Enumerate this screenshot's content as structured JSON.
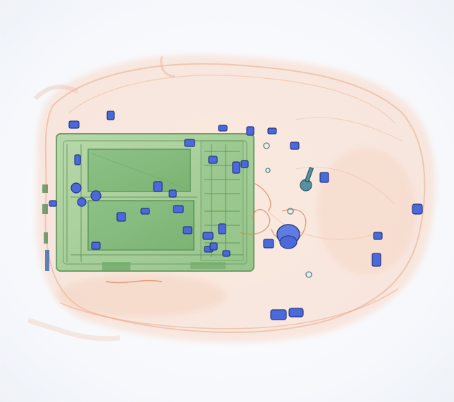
{
  "image": {
    "type": "x-ray baggage scan",
    "palette": {
      "background": "#fbfcfe",
      "organic": "#e8855a",
      "organic_light": "#f6c9ae",
      "inorganic": "#5e9e5a",
      "inorganic_light": "#9ccb8f",
      "metal": "#3f5fd8",
      "metal_dark": "#182a7a"
    },
    "regions": [
      {
        "name": "bag-outline",
        "material": "organic"
      },
      {
        "name": "laptop-board",
        "material": "inorganic"
      },
      {
        "name": "components",
        "material": "metal"
      },
      {
        "name": "key",
        "material": "metal"
      },
      {
        "name": "coins",
        "material": "metal"
      }
    ]
  }
}
